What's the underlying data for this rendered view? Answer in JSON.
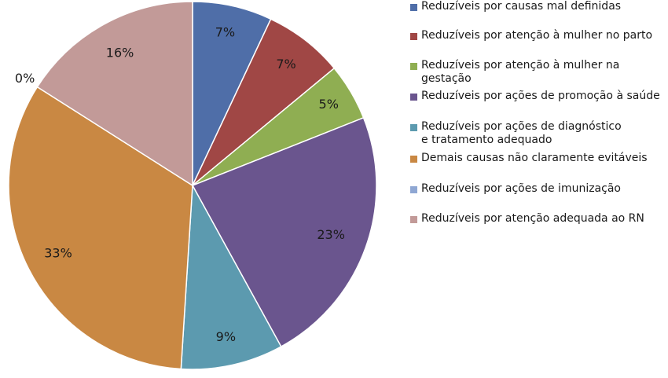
{
  "chart_data": {
    "type": "pie",
    "start_angle_deg": 0,
    "direction": "clockwise",
    "slices": [
      {
        "label": "Reduzíveis por causas mal definidas",
        "value": 7,
        "display": "7%",
        "color": "#4F6EA8"
      },
      {
        "label": "Reduzíveis por atenção à mulher no parto",
        "value": 7,
        "display": "7%",
        "color": "#A04745"
      },
      {
        "label": "Reduzíveis por atenção à mulher na gestação",
        "value": 5,
        "display": "5%",
        "color": "#8FAE52"
      },
      {
        "label": "Reduzíveis por ações de promoção à saúde",
        "value": 23,
        "display": "23%",
        "color": "#6A558E"
      },
      {
        "label": "Reduzíveis por ações de diagnóstico\ne tratamento adequado",
        "value": 9,
        "display": "9%",
        "color": "#5C9AAF"
      },
      {
        "label": "Demais causas não claramente evitáveis",
        "value": 33,
        "display": "33%",
        "color": "#C98843"
      },
      {
        "label": "Reduzíveis por ações de imunização",
        "value": 0,
        "display": "0%",
        "color": "#8FA7D3"
      },
      {
        "label": "Reduzíveis por atenção adequada ao RN",
        "value": 16,
        "display": "16%",
        "color": "#C29A98"
      }
    ],
    "legend_position": "right"
  }
}
